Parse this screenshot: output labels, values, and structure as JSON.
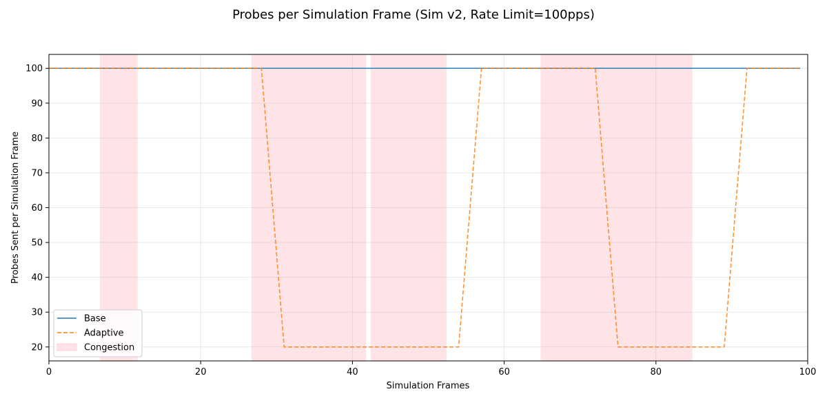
{
  "chart_data": {
    "type": "line",
    "title": "Probes per Simulation Frame (Sim v2, Rate Limit=100pps)",
    "xlabel": "Simulation Frames",
    "ylabel": "Probes Sent per Simulation Frame",
    "xlim": [
      0,
      100
    ],
    "ylim": [
      16,
      104
    ],
    "xticks": [
      0,
      20,
      40,
      60,
      80,
      100
    ],
    "yticks": [
      20,
      30,
      40,
      50,
      60,
      70,
      80,
      90,
      100
    ],
    "grid": true,
    "legend_position": "lower-left",
    "series": [
      {
        "name": "Base",
        "color": "#1f77b4",
        "style": "solid",
        "x": [
          0,
          99
        ],
        "y": [
          100,
          100
        ]
      },
      {
        "name": "Adaptive",
        "color": "#ff7f0e",
        "style": "dashed",
        "x": [
          0,
          28,
          31,
          54,
          57,
          72,
          75,
          89,
          92,
          99
        ],
        "y": [
          100,
          100,
          20,
          20,
          100,
          100,
          20,
          20,
          100,
          100
        ]
      }
    ],
    "shaded_regions": {
      "name": "Congestion",
      "color": "#ffb3ba",
      "ranges": [
        [
          6.7,
          11.7
        ],
        [
          26.7,
          41.8
        ],
        [
          42.4,
          52.4
        ],
        [
          64.8,
          84.8
        ]
      ]
    }
  }
}
